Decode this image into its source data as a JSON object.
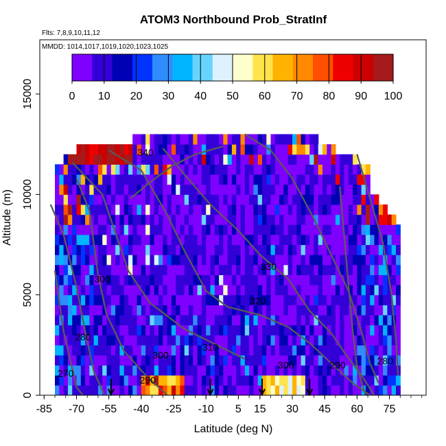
{
  "chart_data": {
    "type": "heatmap",
    "title": "ATOM3 Northbound Prob_StratInf",
    "flights_label": "Flts: 7,8,9,10,11,12",
    "dates_label": "MMDD: 1014,1017,1019,1020,1023,1025",
    "xlabel": "Latitude (deg N)",
    "ylabel": "Altitude (m)",
    "xlim": [
      -87,
      92
    ],
    "ylim": [
      0,
      17700
    ],
    "x_ticks": [
      "-85",
      "-70",
      "-55",
      "-40",
      "-25",
      "-10",
      "5",
      "15",
      "30",
      "45",
      "60",
      "75"
    ],
    "y_ticks": [
      "0",
      "5000",
      "10000",
      "15000"
    ],
    "colorbar": {
      "ticks": [
        "0",
        "10",
        "20",
        "30",
        "40",
        "50",
        "60",
        "70",
        "80",
        "90",
        "100"
      ],
      "range": [
        0,
        100
      ],
      "colors": [
        "#7e00ff",
        "#3300d8",
        "#0000b5",
        "#0033ff",
        "#2f8cff",
        "#00b4ff",
        "#66d4ff",
        "#ddf1ff",
        "#ffffcc",
        "#ffe34d",
        "#ffb300",
        "#ff8a00",
        "#ff4f00",
        "#ee0000",
        "#cc0000",
        "#a51a1a"
      ]
    },
    "contour_labels": [
      {
        "text": "340",
        "lat": -38,
        "alt": 12100
      },
      {
        "text": "330",
        "lat": 19,
        "alt": 6400
      },
      {
        "text": "320",
        "lat": 14,
        "alt": 4700
      },
      {
        "text": "310",
        "lat": -8,
        "alt": 2400
      },
      {
        "text": "300",
        "lat": -31,
        "alt": 2000
      },
      {
        "text": "300",
        "lat": 27,
        "alt": 1500
      },
      {
        "text": "300",
        "lat": -58,
        "alt": 5800
      },
      {
        "text": "290",
        "lat": -37,
        "alt": 750
      },
      {
        "text": "290",
        "lat": 51,
        "alt": 1500
      },
      {
        "text": "280",
        "lat": -67,
        "alt": 2900
      },
      {
        "text": "280",
        "lat": 73,
        "alt": 1700
      },
      {
        "text": "270",
        "lat": -75,
        "alt": 1100
      }
    ],
    "flight_markers_lat": [
      -54,
      -8,
      16,
      38
    ]
  }
}
